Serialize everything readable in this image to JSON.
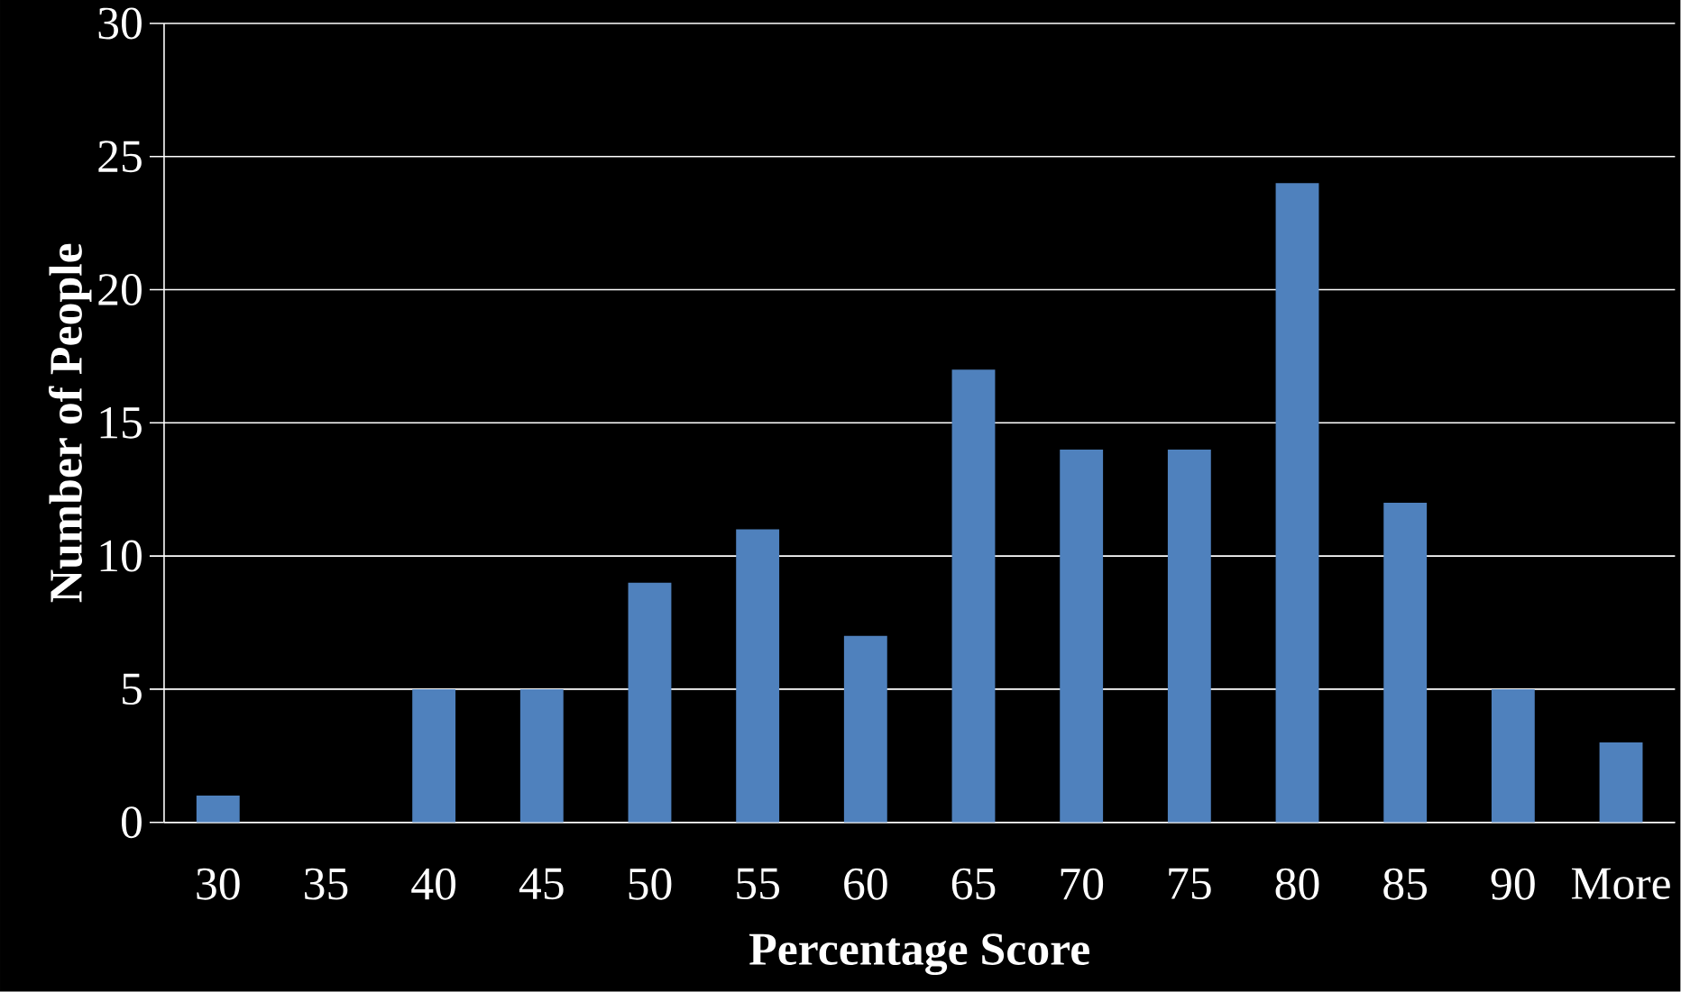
{
  "chart_data": {
    "type": "bar",
    "xlabel": "Percentage Score",
    "ylabel": "Number of People",
    "categories": [
      "30",
      "35",
      "40",
      "45",
      "50",
      "55",
      "60",
      "65",
      "70",
      "75",
      "80",
      "85",
      "90",
      "More"
    ],
    "values": [
      1,
      0,
      5,
      5,
      9,
      11,
      7,
      17,
      14,
      14,
      24,
      12,
      5,
      3
    ],
    "color": "#4f81bd",
    "ylim": [
      0,
      30
    ],
    "yticks": [
      0,
      5,
      10,
      15,
      20,
      25,
      30
    ],
    "grid": "y"
  }
}
